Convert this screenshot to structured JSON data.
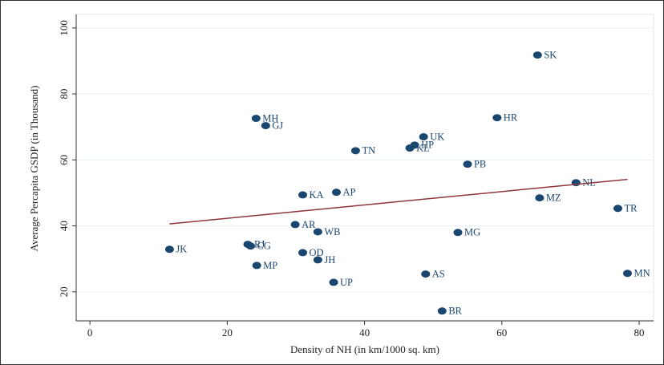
{
  "chart_data": {
    "type": "scatter",
    "xlabel": "Density of NH (in km/1000 sq. km)",
    "ylabel": "Average Percapita GSDP (in Thousand)",
    "xlim": [
      -2,
      82.1
    ],
    "ylim": [
      11.2,
      104.1
    ],
    "xticks": [
      0,
      20,
      40,
      60,
      80
    ],
    "yticks": [
      20,
      40,
      60,
      80,
      100
    ],
    "grid": true,
    "series": [
      {
        "color": "#1a476f",
        "labels": [
          "JK",
          "RJ",
          "CG",
          "MH",
          "GJ",
          "MP",
          "AR",
          "KA",
          "OD",
          "WB",
          "JH",
          "AP",
          "UP",
          "TN",
          "KL",
          "HP",
          "UK",
          "AS",
          "BR",
          "MG",
          "PB",
          "HR",
          "SK",
          "MZ",
          "NL",
          "TR",
          "MN"
        ],
        "x": [
          11.6,
          23.0,
          23.4,
          24.2,
          25.6,
          24.3,
          29.9,
          31.0,
          31.0,
          33.2,
          33.2,
          35.9,
          35.5,
          38.7,
          46.6,
          47.3,
          48.6,
          48.9,
          51.3,
          53.6,
          55.0,
          59.3,
          65.2,
          65.5,
          70.8,
          76.9,
          78.3
        ],
        "values": [
          32.9,
          34.4,
          33.9,
          72.6,
          70.4,
          28.0,
          40.4,
          49.4,
          31.9,
          38.2,
          29.7,
          50.2,
          22.9,
          62.8,
          63.6,
          64.5,
          67.0,
          25.4,
          14.2,
          38.0,
          58.7,
          72.8,
          91.8,
          48.5,
          53.1,
          45.3,
          25.6
        ]
      }
    ],
    "fit": {
      "color": "#90353b",
      "x": [
        11.6,
        78.3
      ],
      "values": [
        40.6,
        54.1
      ]
    }
  }
}
